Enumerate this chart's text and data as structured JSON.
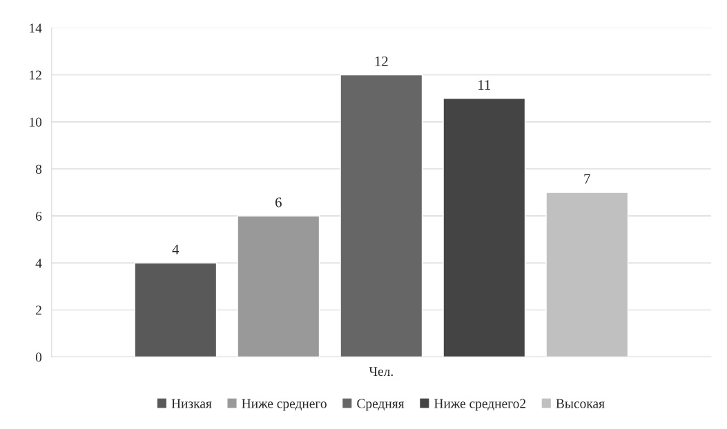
{
  "chart_data": {
    "type": "bar",
    "categories": [
      "Чел."
    ],
    "series": [
      {
        "name": "Низкая",
        "color": "#595959",
        "values": [
          4
        ]
      },
      {
        "name": "Ниже среднего",
        "color": "#999999",
        "values": [
          6
        ]
      },
      {
        "name": "Средняя",
        "color": "#666666",
        "values": [
          12
        ]
      },
      {
        "name": "Ниже среднего2",
        "color": "#444444",
        "values": [
          11
        ]
      },
      {
        "name": "Высокая",
        "color": "#c0c0c0",
        "values": [
          7
        ]
      }
    ],
    "ylim": [
      0,
      14
    ],
    "yticks": [
      0,
      2,
      4,
      6,
      8,
      10,
      12,
      14
    ],
    "grid": "y",
    "legend": "bottom",
    "data_labels": true
  }
}
